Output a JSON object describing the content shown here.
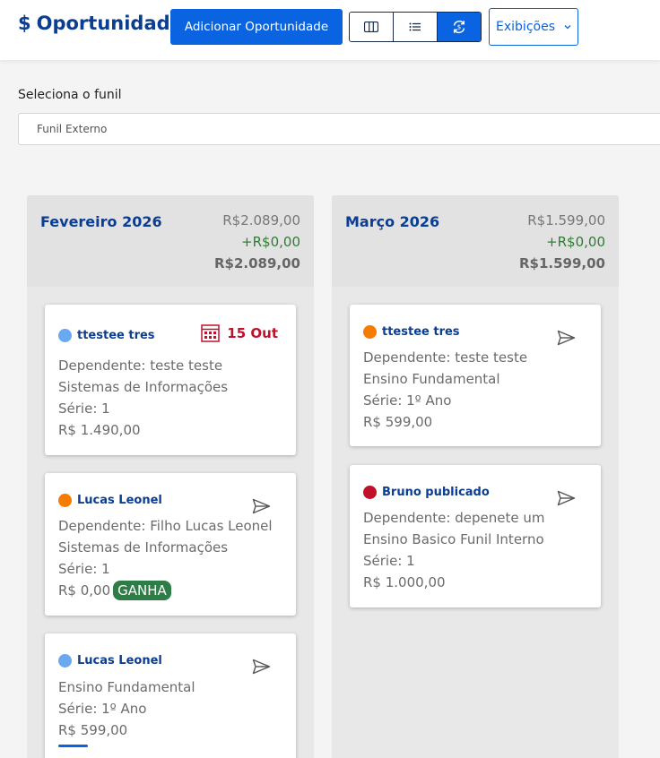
{
  "header": {
    "title_icon": "$",
    "title": "Oportunidade",
    "add_button": "Adicionar Oportunidade",
    "view_buttons": [
      {
        "icon": "columns-icon",
        "active": false
      },
      {
        "icon": "list-icon",
        "active": false
      },
      {
        "icon": "sync-icon",
        "active": true
      }
    ],
    "views_dropdown": "Exibições",
    "colors": {
      "accent": "#0a63e0",
      "title": "#0b3d91"
    }
  },
  "funnel": {
    "label": "Seleciona o funil",
    "value": "Funil Externo"
  },
  "columns": [
    {
      "title": "Fevereiro 2026",
      "total": "R$2.089,00",
      "plus": "+R$0,00",
      "grand_total": "R$2.089,00",
      "cards": [
        {
          "name": "ttestee tres",
          "dot_color": "#6aa8f0",
          "date_badge": "15 Out",
          "lines": [
            "Dependente: teste teste",
            "Sistemas de Informações",
            "Série: 1",
            "R$ 1.490,00"
          ]
        },
        {
          "name": "Lucas Leonel",
          "dot_color": "#f57c00",
          "status": "GANHA",
          "lines": [
            "Dependente: Filho Lucas Leonel",
            "Sistemas de Informações",
            "Série: 1",
            "R$ 0,00"
          ]
        },
        {
          "name": "Lucas Leonel",
          "dot_color": "#6aa8f0",
          "lines": [
            "Ensino Fundamental",
            "Série: 1º Ano",
            "R$ 599,00"
          ]
        }
      ]
    },
    {
      "title": "Março 2026",
      "total": "R$1.599,00",
      "plus": "+R$0,00",
      "grand_total": "R$1.599,00",
      "cards": [
        {
          "name": "ttestee tres",
          "dot_color": "#f57c00",
          "lines": [
            "Dependente: teste teste",
            "Ensino Fundamental",
            "Série: 1º Ano",
            "R$ 599,00"
          ]
        },
        {
          "name": "Bruno publicado",
          "dot_color": "#c0102a",
          "lines": [
            "Dependente: depenete um",
            "Ensino Basico Funil Interno",
            "Série: 1",
            "R$ 1.000,00"
          ]
        }
      ]
    }
  ]
}
